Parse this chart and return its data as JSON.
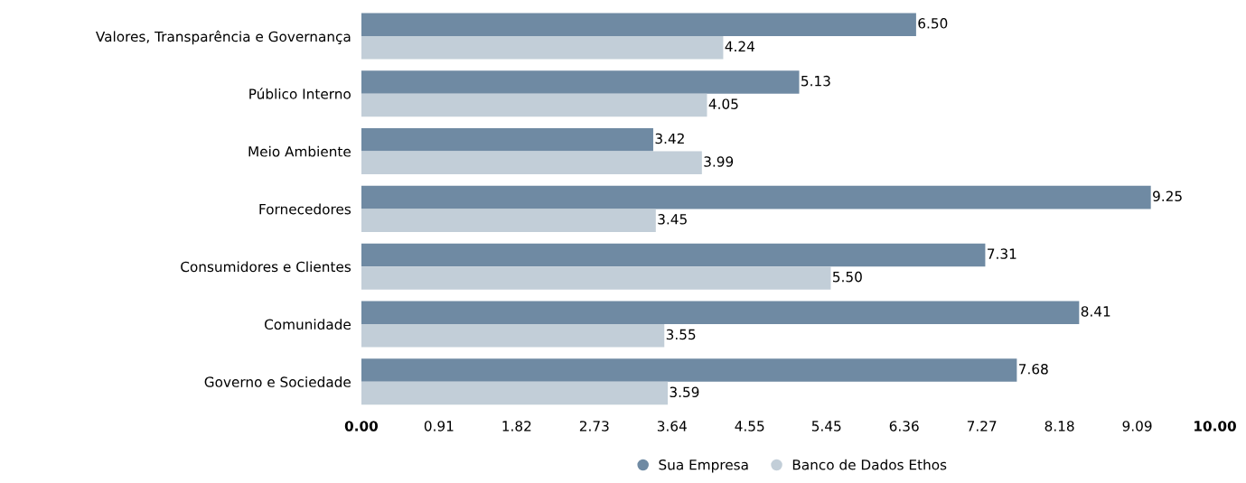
{
  "chart_data": {
    "type": "bar",
    "orientation": "horizontal",
    "categories": [
      "Valores, Transparência e Governança",
      "Público Interno",
      "Meio Ambiente",
      "Fornecedores",
      "Consumidores e Clientes",
      "Comunidade",
      "Governo e Sociedade"
    ],
    "series": [
      {
        "name": "Sua Empresa",
        "color": "#6f8aa3",
        "values": [
          6.5,
          5.13,
          3.42,
          9.25,
          7.31,
          8.41,
          7.68
        ],
        "value_labels": [
          "6.50",
          "5.13",
          "3.42",
          "9.25",
          "7.31",
          "8.41",
          "7.68"
        ]
      },
      {
        "name": "Banco de Dados Ethos",
        "color": "#c2ced8",
        "values": [
          4.24,
          4.05,
          3.99,
          3.45,
          5.5,
          3.55,
          3.59
        ],
        "value_labels": [
          "4.24",
          "4.05",
          "3.99",
          "3.45",
          "5.50",
          "3.55",
          "3.59"
        ]
      }
    ],
    "xlim": [
      0,
      10
    ],
    "xticks": [
      {
        "value": 0,
        "label": "0.00"
      },
      0.91,
      1.82,
      2.73,
      3.64,
      4.55,
      5.45,
      6.36,
      7.27,
      8.18,
      9.09,
      {
        "value": 10,
        "label": "10.00"
      }
    ],
    "legend": "bottom",
    "grid": false,
    "marker": "circle"
  }
}
